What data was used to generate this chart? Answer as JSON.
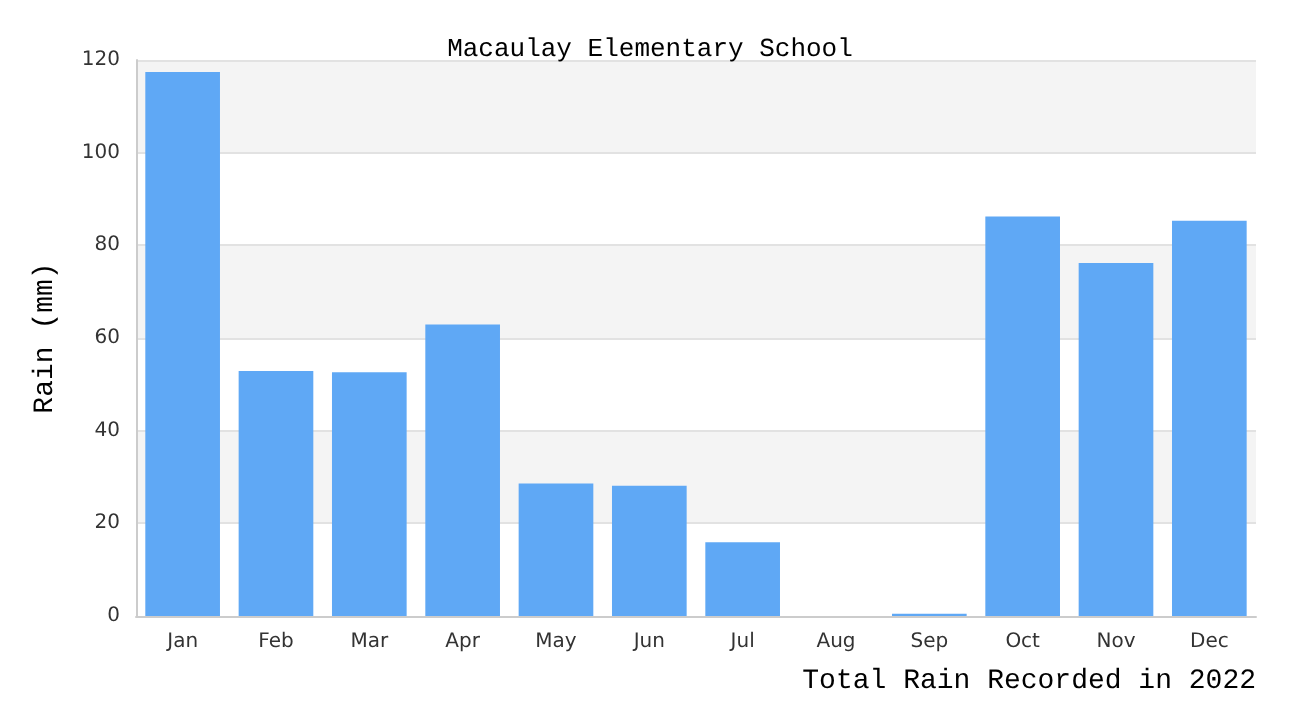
{
  "chart_data": {
    "type": "bar",
    "title": "Macaulay Elementary School",
    "xlabel": "Total Rain Recorded in 2022",
    "ylabel": "Rain (mm)",
    "categories": [
      "Jan",
      "Feb",
      "Mar",
      "Apr",
      "May",
      "Jun",
      "Jul",
      "Aug",
      "Sep",
      "Oct",
      "Nov",
      "Dec"
    ],
    "values": [
      117.4,
      52.9,
      52.6,
      62.9,
      28.6,
      28.1,
      15.9,
      0,
      0.5,
      86.2,
      76.2,
      85.3
    ],
    "color": "#5fa8f5",
    "ylim": [
      0,
      120
    ],
    "yticks": [
      0,
      20,
      40,
      60,
      80,
      100,
      120
    ],
    "grid": "y"
  }
}
